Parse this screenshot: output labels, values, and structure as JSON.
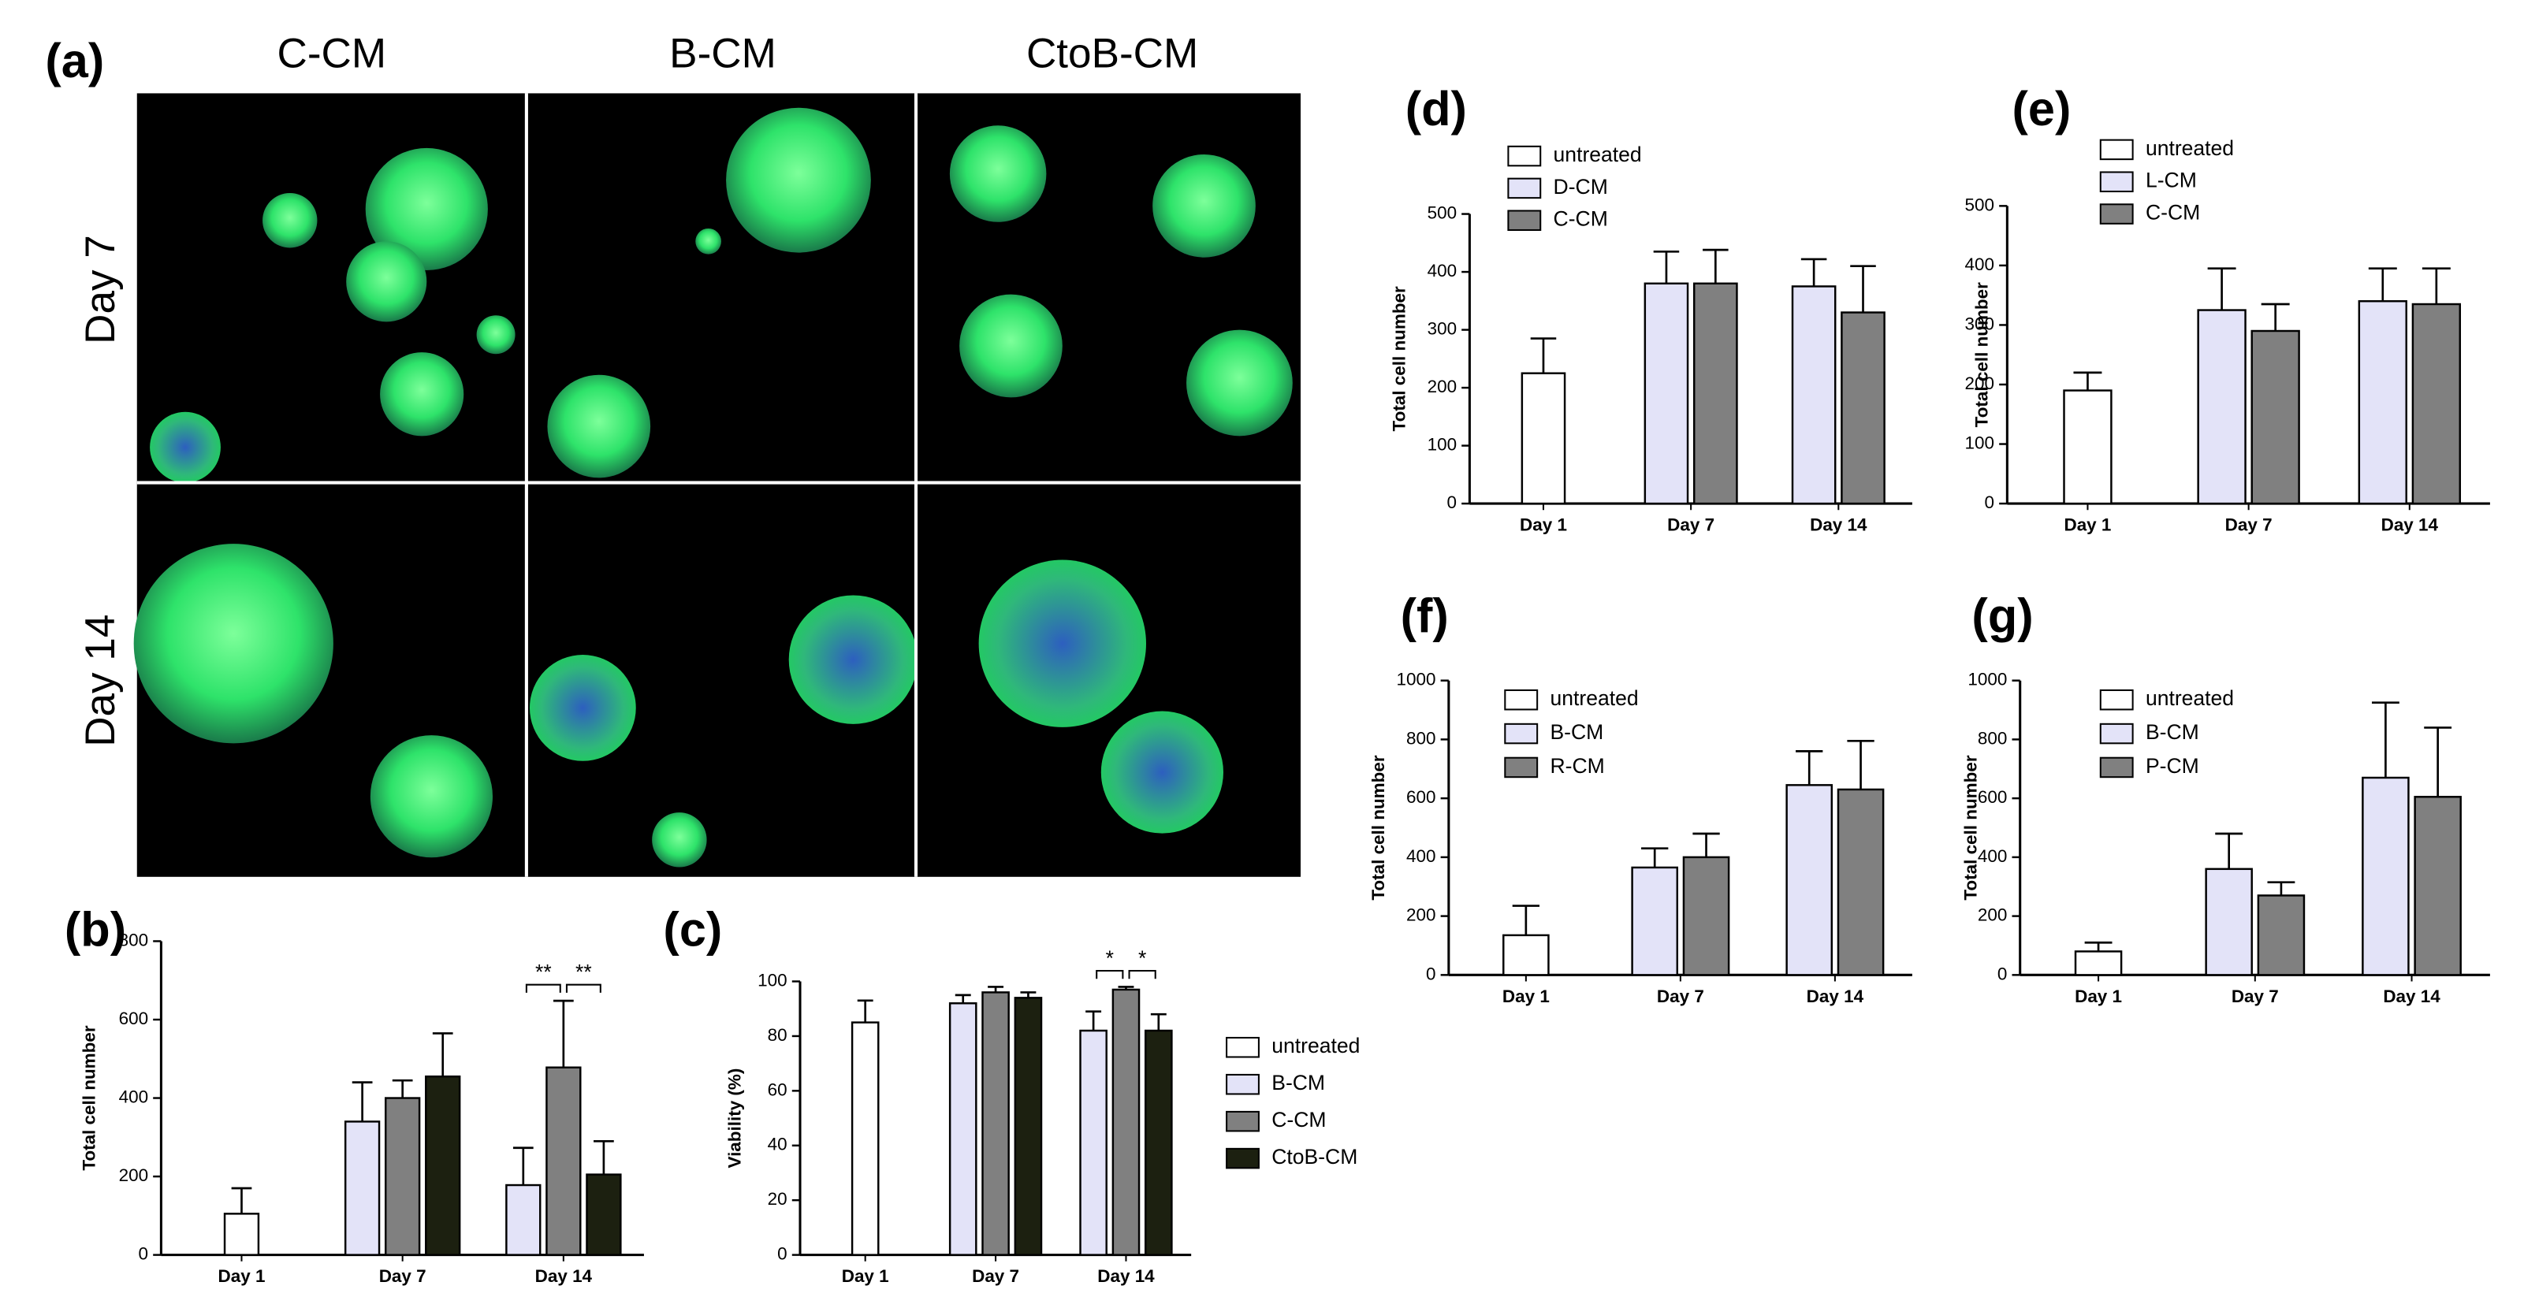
{
  "image_panel": {
    "label": "(a)",
    "columns": [
      "C-CM",
      "B-CM",
      "CtoB-CM"
    ],
    "rows": [
      "Day 7",
      "Day 14"
    ]
  },
  "chart_data": [
    {
      "type": "bar",
      "panel_label": "(b)",
      "ylabel": "Total cell number",
      "categories": [
        "Day 1",
        "Day 7",
        "Day 14"
      ],
      "series": [
        {
          "name": "untreated",
          "color": "#ffffff",
          "values": [
            105,
            null,
            null
          ],
          "errors": [
            65,
            null,
            null
          ]
        },
        {
          "name": "B-CM",
          "color": "#e3e3f8",
          "values": [
            null,
            340,
            178
          ],
          "errors": [
            null,
            100,
            95
          ]
        },
        {
          "name": "C-CM",
          "color": "#808080",
          "values": [
            null,
            400,
            478
          ],
          "errors": [
            null,
            45,
            170
          ]
        },
        {
          "name": "CtoB-CM",
          "color": "#1c2010",
          "values": [
            null,
            455,
            205
          ],
          "errors": [
            null,
            110,
            85
          ]
        }
      ],
      "ylim": [
        0,
        800
      ],
      "yticks": [
        0,
        200,
        400,
        600,
        800
      ],
      "annotations": [
        "**",
        "**"
      ]
    },
    {
      "type": "bar",
      "panel_label": "(c)",
      "ylabel": "Viability (%)",
      "categories": [
        "Day 1",
        "Day 7",
        "Day 14"
      ],
      "series": [
        {
          "color": "#ffffff",
          "values": [
            85,
            null,
            null
          ],
          "errors": [
            8,
            null,
            null
          ]
        },
        {
          "color": "#e3e3f8",
          "values": [
            null,
            92,
            82
          ],
          "errors": [
            null,
            3,
            7
          ]
        },
        {
          "color": "#808080",
          "values": [
            null,
            96,
            97
          ],
          "errors": [
            null,
            2,
            1
          ]
        },
        {
          "color": "#1c2010",
          "values": [
            null,
            94,
            82
          ],
          "errors": [
            null,
            2,
            6
          ]
        }
      ],
      "ylim": [
        0,
        100
      ],
      "yticks": [
        0,
        20,
        40,
        60,
        80,
        100
      ],
      "annotations": [
        "*",
        "*"
      ]
    },
    {
      "type": "bar",
      "panel_label": "(d)",
      "ylabel": "Total cell number",
      "categories": [
        "Day 1",
        "Day 7",
        "Day 14"
      ],
      "series": [
        {
          "name": "untreated",
          "color": "#ffffff",
          "values": [
            225,
            null,
            null
          ],
          "errors": [
            60,
            null,
            null
          ]
        },
        {
          "name": "D-CM",
          "color": "#e3e3f8",
          "values": [
            null,
            380,
            375
          ],
          "errors": [
            null,
            55,
            47
          ]
        },
        {
          "name": "C-CM",
          "color": "#808080",
          "values": [
            null,
            380,
            330
          ],
          "errors": [
            null,
            58,
            80
          ]
        }
      ],
      "ylim": [
        0,
        500
      ],
      "yticks": [
        0,
        100,
        200,
        300,
        400,
        500
      ]
    },
    {
      "type": "bar",
      "panel_label": "(e)",
      "ylabel": "Total cell number",
      "categories": [
        "Day 1",
        "Day 7",
        "Day 14"
      ],
      "series": [
        {
          "name": "untreated",
          "color": "#ffffff",
          "values": [
            190,
            null,
            null
          ],
          "errors": [
            30,
            null,
            null
          ]
        },
        {
          "name": "L-CM",
          "color": "#e3e3f8",
          "values": [
            null,
            325,
            340
          ],
          "errors": [
            null,
            70,
            55
          ]
        },
        {
          "name": "C-CM",
          "color": "#808080",
          "values": [
            null,
            290,
            335
          ],
          "errors": [
            null,
            45,
            60
          ]
        }
      ],
      "ylim": [
        0,
        500
      ],
      "yticks": [
        0,
        100,
        200,
        300,
        400,
        500
      ]
    },
    {
      "type": "bar",
      "panel_label": "(f)",
      "ylabel": "Total cell number",
      "categories": [
        "Day 1",
        "Day 7",
        "Day 14"
      ],
      "series": [
        {
          "name": "untreated",
          "color": "#ffffff",
          "values": [
            135,
            null,
            null
          ],
          "errors": [
            100,
            null,
            null
          ]
        },
        {
          "name": "B-CM",
          "color": "#e3e3f8",
          "values": [
            null,
            365,
            645
          ],
          "errors": [
            null,
            65,
            115
          ]
        },
        {
          "name": "R-CM",
          "color": "#808080",
          "values": [
            null,
            400,
            630
          ],
          "errors": [
            null,
            80,
            165
          ]
        }
      ],
      "ylim": [
        0,
        1000
      ],
      "yticks": [
        0,
        200,
        400,
        600,
        800,
        1000
      ]
    },
    {
      "type": "bar",
      "panel_label": "(g)",
      "ylabel": "Total cell number",
      "categories": [
        "Day 1",
        "Day 7",
        "Day 14"
      ],
      "series": [
        {
          "name": "untreated",
          "color": "#ffffff",
          "values": [
            80,
            null,
            null
          ],
          "errors": [
            30,
            null,
            null
          ]
        },
        {
          "name": "B-CM",
          "color": "#e3e3f8",
          "values": [
            null,
            360,
            670
          ],
          "errors": [
            null,
            120,
            255
          ]
        },
        {
          "name": "P-CM",
          "color": "#808080",
          "values": [
            null,
            270,
            605
          ],
          "errors": [
            null,
            45,
            235
          ]
        }
      ],
      "ylim": [
        0,
        1000
      ],
      "yticks": [
        0,
        200,
        400,
        600,
        800,
        1000
      ]
    }
  ]
}
